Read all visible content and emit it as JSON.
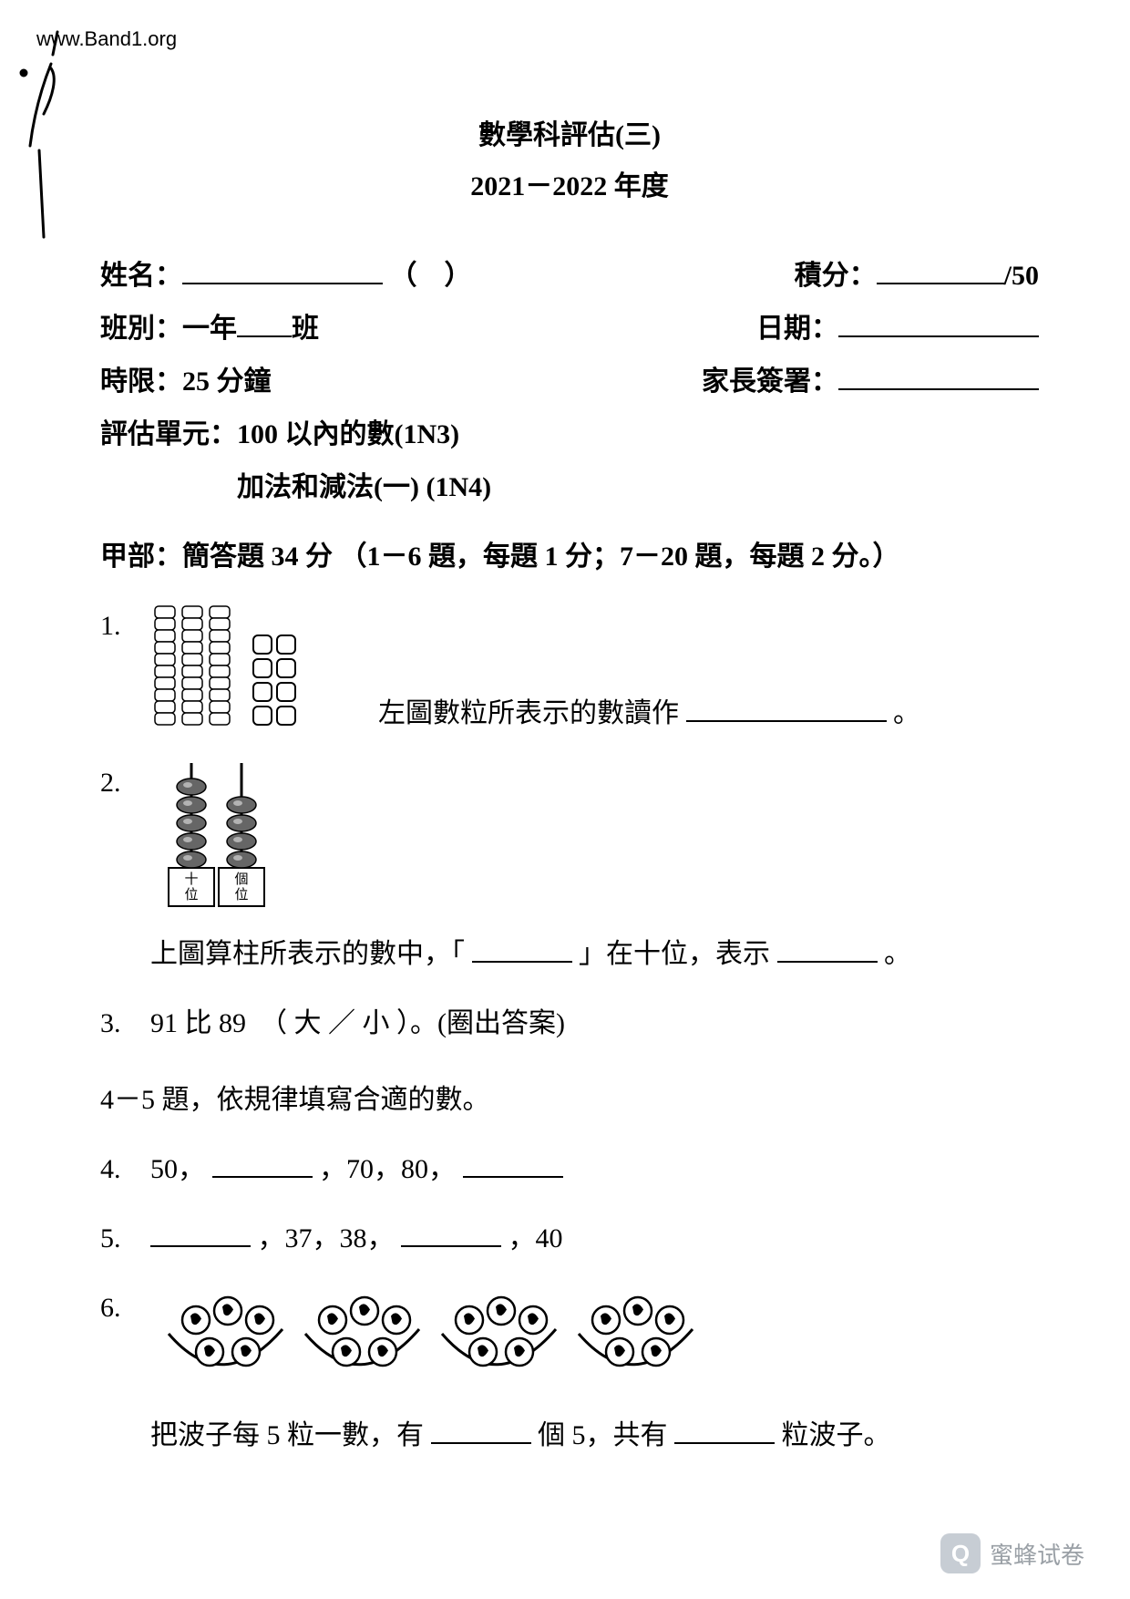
{
  "url_watermark": "www.Band1.org",
  "title": {
    "line1": "數學科評估(三)",
    "line2": "2021－2022 年度"
  },
  "header": {
    "name_label": "姓名：",
    "name_paren": "（　）",
    "class_label": "班別：一年",
    "class_suffix": "班",
    "class_blank_width": 60,
    "time_label": "時限：25 分鐘",
    "unit_label": "評估單元：",
    "unit_line1": "100 以內的數(1N3)",
    "unit_line2": "加法和減法(一) (1N4)",
    "score_label": "積分：",
    "score_total": "/50",
    "date_label": "日期：",
    "sign_label": "家長簽署："
  },
  "section_a": "甲部：簡答題 34 分 （1－6 題，每題 1 分；7－20 題，每題 2 分。）",
  "q1": {
    "num": "1.",
    "text": "左圖數粒所表示的數讀作",
    "period": "。",
    "tens_rods": 3,
    "rod_cells": 10,
    "ones_units": 8,
    "ones_cols": 2,
    "colors": {
      "stroke": "#000000",
      "fill": "#ffffff"
    }
  },
  "q2": {
    "num": "2.",
    "abacus": {
      "tens_label": "十位",
      "ones_label": "個位",
      "tens_beads": 5,
      "ones_beads": 4,
      "bead_fill": "#666666",
      "stroke": "#000000"
    },
    "text_a": "上圖算柱所表示的數中，「",
    "text_b": "」在十位，表示",
    "period": "。"
  },
  "q3": {
    "num": "3.",
    "text_a": "91 比 89　（ 大 ／ 小 ）。(圈出答案)"
  },
  "q45_instr": "4－5 題，依規律填寫合適的數。",
  "q4": {
    "num": "4.",
    "seq_a": "50，",
    "seq_b": "，70，80，"
  },
  "q5": {
    "num": "5.",
    "seq_b": "，37，38，",
    "seq_c": "，40"
  },
  "q6": {
    "num": "6.",
    "groups": [
      5,
      5,
      5,
      5
    ],
    "stroke": "#000000",
    "text_a": "把波子每 5 粒一數，有",
    "text_b": "個 5，共有",
    "text_c": "粒波子。"
  },
  "footer": {
    "brand": "蜜蜂试卷",
    "icon_letter": "Q"
  }
}
